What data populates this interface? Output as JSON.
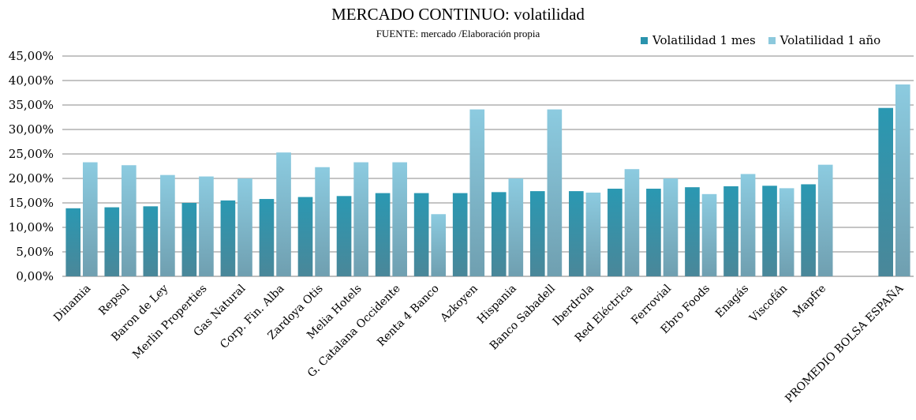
{
  "chart_data": {
    "type": "bar",
    "title": "MERCADO CONTINUO:  volatilidad",
    "subtitle": "FUENTE: mercado /Elaboración propia",
    "xlabel": "",
    "ylabel": "",
    "ylim": [
      0,
      45
    ],
    "yticks": [
      "0,00%",
      "5,00%",
      "10,00%",
      "15,00%",
      "20,00%",
      "25,00%",
      "30,00%",
      "35,00%",
      "40,00%",
      "45,00%"
    ],
    "grid": true,
    "legend_position": "top-right",
    "categories": [
      "Dinamia",
      "Repsol",
      "Baron de Ley",
      "Merlin Properties",
      "Gas Natural",
      "Corp. Fin. Alba",
      "Zardoya Otis",
      "Melia Hotels",
      "G. Catalana Occidente",
      "Renta 4 Banco",
      "Azkoyen",
      "Hispania",
      "Banco Sabadell",
      "Iberdrola",
      "Red Eléctrica",
      "Ferrovial",
      "Ebro Foods",
      "Enagás",
      "Viscofán",
      "Mapfre",
      "",
      "PROMEDIO BOLSA ESPAÑA"
    ],
    "series": [
      {
        "name": "Volatilidad 1 mes",
        "color": "#2a93ad",
        "values": [
          13.9,
          14.1,
          14.3,
          15.0,
          15.5,
          15.8,
          16.2,
          16.4,
          17.0,
          17.0,
          17.0,
          17.2,
          17.4,
          17.4,
          17.9,
          17.9,
          18.2,
          18.4,
          18.5,
          18.8,
          null,
          34.4
        ]
      },
      {
        "name": "Volatilidad 1 año",
        "color": "#8cc9dd",
        "values": [
          23.3,
          22.7,
          20.7,
          20.4,
          20.0,
          25.3,
          22.3,
          23.3,
          23.3,
          12.7,
          34.1,
          20.0,
          34.1,
          17.1,
          21.9,
          20.0,
          16.8,
          20.9,
          18.0,
          22.8,
          null,
          39.2
        ]
      }
    ]
  }
}
